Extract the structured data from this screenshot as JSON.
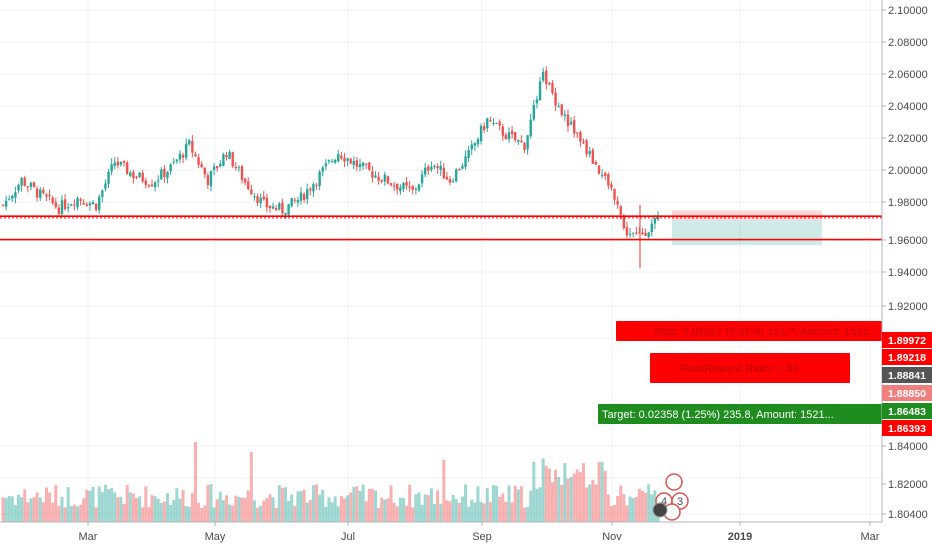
{
  "chart_data": {
    "type": "candlestick",
    "y_ticks": [
      "2.10000",
      "2.08000",
      "2.06000",
      "2.04000",
      "2.02000",
      "2.00000",
      "1.98000",
      "1.96000",
      "1.94000",
      "1.92000",
      "1.90000",
      "1.84000",
      "1.82000",
      "1.80400"
    ],
    "x_ticks": [
      "Mar",
      "May",
      "Jul",
      "Sep",
      "Nov",
      "2019",
      "Mar"
    ],
    "x_ticks_bold": [
      false,
      false,
      false,
      false,
      false,
      true,
      false
    ],
    "ylim": [
      1.8,
      2.11
    ],
    "price_tags": [
      {
        "value": 1.89972,
        "label": "1.89972",
        "color": "#ff0000"
      },
      {
        "value": 1.89218,
        "label": "1.89218",
        "color": "#ff0000"
      },
      {
        "value": 1.88841,
        "label": "1.88841",
        "color": "#555555"
      },
      {
        "value": 1.8885,
        "label": "1.88850",
        "color": "#f08080"
      },
      {
        "value": 1.86483,
        "label": "1.86483",
        "color": "#1e8c1e"
      },
      {
        "value": 1.86393,
        "label": "1.86393",
        "color": "#ff0000"
      }
    ],
    "horizontal_lines": [
      {
        "value": 1.8938,
        "color": "#ff0000",
        "style": "solid"
      },
      {
        "value": 1.89218,
        "color": "#ff0000",
        "style": "dotted"
      },
      {
        "value": 1.8704,
        "color": "#ff0000",
        "style": "solid"
      }
    ],
    "candles": {
      "start_month_index": 1,
      "count": 212,
      "close_path": [
        [
          0,
          1.905
        ],
        [
          6,
          1.93
        ],
        [
          12,
          1.915
        ],
        [
          18,
          1.902
        ],
        [
          24,
          1.912
        ],
        [
          30,
          1.905
        ],
        [
          36,
          1.948
        ],
        [
          42,
          1.935
        ],
        [
          48,
          1.928
        ],
        [
          54,
          1.942
        ],
        [
          60,
          1.965
        ],
        [
          66,
          1.93
        ],
        [
          72,
          1.958
        ],
        [
          78,
          1.928
        ],
        [
          84,
          1.905
        ],
        [
          90,
          1.9
        ],
        [
          96,
          1.912
        ],
        [
          102,
          1.935
        ],
        [
          108,
          1.958
        ],
        [
          114,
          1.945
        ],
        [
          120,
          1.935
        ],
        [
          126,
          1.926
        ],
        [
          132,
          1.918
        ],
        [
          138,
          1.948
        ],
        [
          144,
          1.93
        ],
        [
          150,
          1.955
        ],
        [
          156,
          1.99
        ],
        [
          162,
          1.975
        ],
        [
          168,
          1.965
        ],
        [
          174,
          2.035
        ],
        [
          180,
          1.998
        ],
        [
          186,
          1.97
        ],
        [
          192,
          1.94
        ],
        [
          198,
          1.91
        ],
        [
          200,
          1.88
        ],
        [
          204,
          1.873
        ],
        [
          211,
          1.889
        ]
      ]
    }
  },
  "trade_boxes": {
    "stop": {
      "text": "Stop: 0.01517 (0.81%) 151.7, Amount: 1521...",
      "color": "#ff0000"
    },
    "ratio": {
      "text": "Risk/Reward Ratio: 1.56",
      "color": "#ff0000"
    },
    "target": {
      "text": "Target: 0.02358 (1.25%) 235.8, Amount: 1521...",
      "color": "#1e8c1e"
    }
  },
  "event_markers": [
    {
      "text": "4"
    },
    {
      "text": "3"
    }
  ]
}
